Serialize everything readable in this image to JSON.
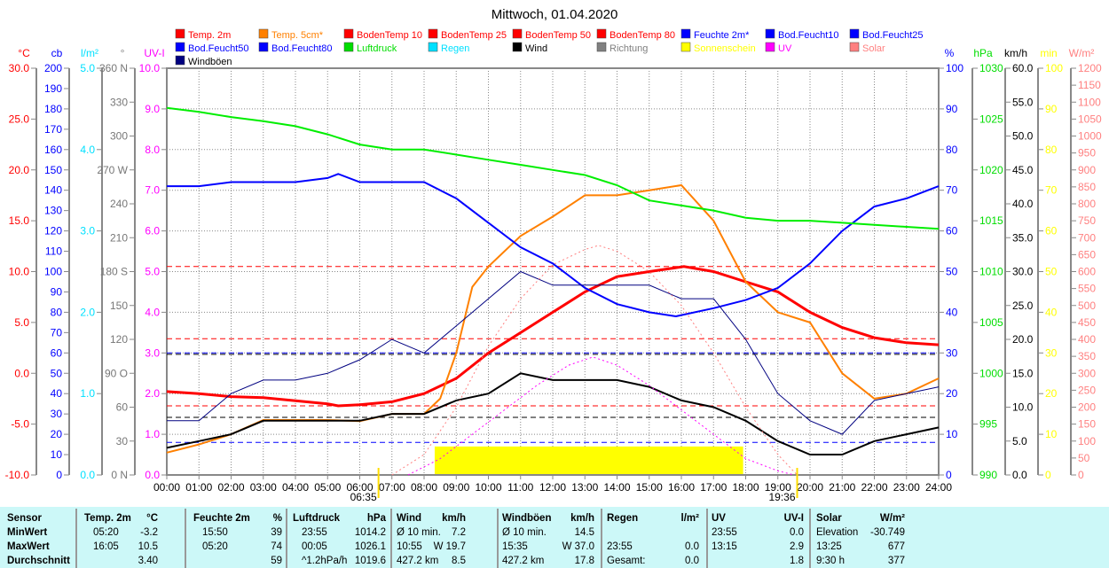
{
  "chart_data": {
    "type": "line",
    "title": "Mittwoch, 01.04.2020",
    "x_unit": "hours",
    "x_ticks": [
      "00:00",
      "01:00",
      "02:00",
      "03:00",
      "04:00",
      "05:00",
      "06:00",
      "07:00",
      "08:00",
      "09:00",
      "10:00",
      "11:00",
      "12:00",
      "13:00",
      "14:00",
      "15:00",
      "16:00",
      "17:00",
      "18:00",
      "19:00",
      "20:00",
      "21:00",
      "22:00",
      "23:00",
      "24:00"
    ],
    "sunrise": "06:35",
    "sunset": "19:36",
    "axes": {
      "temp": {
        "unit": "°C",
        "color": "#ff0000",
        "range": [
          -10,
          30
        ],
        "ticks": [
          "30.0",
          "25.0",
          "20.0",
          "15.0",
          "10.0",
          "5.0",
          "0.0",
          "-5.0",
          "-10.0"
        ]
      },
      "cb": {
        "unit": "cb",
        "color": "#0000ff",
        "range": [
          0,
          200
        ],
        "ticks": [
          "200",
          "190",
          "180",
          "170",
          "160",
          "150",
          "140",
          "130",
          "120",
          "110",
          "100",
          "90",
          "80",
          "70",
          "60",
          "50",
          "40",
          "30",
          "20",
          "10",
          "0"
        ]
      },
      "rain": {
        "unit": "l/m²",
        "color": "#00e0ff",
        "range": [
          0,
          5
        ],
        "ticks": [
          "5.0",
          "4.0",
          "3.0",
          "2.0",
          "1.0",
          "0.0"
        ]
      },
      "dir": {
        "unit": "°",
        "color": "#808080",
        "range": [
          0,
          360
        ],
        "ticks": [
          "360 N",
          "330",
          "300",
          "270 W",
          "240",
          "210",
          "180 S",
          "150",
          "120",
          "90 O",
          "60",
          "30",
          "0 N"
        ]
      },
      "uv": {
        "unit": "UV-I",
        "color": "#ff00ff",
        "range": [
          0,
          10
        ],
        "ticks": [
          "10.0",
          "9.0",
          "8.0",
          "7.0",
          "6.0",
          "5.0",
          "4.0",
          "3.0",
          "2.0",
          "1.0",
          "0.0"
        ]
      },
      "hum": {
        "unit": "%",
        "color": "#0000ff",
        "range": [
          0,
          100
        ],
        "ticks": [
          "100",
          "90",
          "80",
          "70",
          "60",
          "50",
          "40",
          "30",
          "20",
          "10",
          "0"
        ]
      },
      "press": {
        "unit": "hPa",
        "color": "#00dd00",
        "range": [
          990,
          1030
        ],
        "ticks": [
          "1030",
          "1025",
          "1020",
          "1015",
          "1010",
          "1005",
          "1000",
          "995",
          "990"
        ]
      },
      "wind": {
        "unit": "km/h",
        "color": "#000000",
        "range": [
          0,
          60
        ],
        "ticks": [
          "60.0",
          "55.0",
          "50.0",
          "45.0",
          "40.0",
          "35.0",
          "30.0",
          "25.0",
          "20.0",
          "15.0",
          "10.0",
          "5.0",
          "0.0"
        ]
      },
      "sun": {
        "unit": "min",
        "color": "#ffff00",
        "range": [
          0,
          100
        ],
        "ticks": [
          "100",
          "90",
          "80",
          "70",
          "60",
          "50",
          "40",
          "30",
          "20",
          "10",
          "0"
        ]
      },
      "solar": {
        "unit": "W/m²",
        "color": "#ff8080",
        "range": [
          0,
          1200
        ],
        "ticks": [
          "1200",
          "1150",
          "1100",
          "1050",
          "1000",
          "950",
          "900",
          "850",
          "800",
          "750",
          "700",
          "650",
          "600",
          "550",
          "500",
          "450",
          "400",
          "350",
          "300",
          "250",
          "200",
          "150",
          "100",
          "50",
          "0"
        ]
      }
    },
    "legend": [
      {
        "label": "Temp. 2m",
        "color": "#ff0000"
      },
      {
        "label": "Temp. 5cm*",
        "color": "#ff8000"
      },
      {
        "label": "BodenTemp 10",
        "color": "#ff0000"
      },
      {
        "label": "BodenTemp 25",
        "color": "#ff0000"
      },
      {
        "label": "BodenTemp 50",
        "color": "#ff0000"
      },
      {
        "label": "BodenTemp 80",
        "color": "#ff0000"
      },
      {
        "label": "Feuchte 2m*",
        "color": "#0000ff"
      },
      {
        "label": "Bod.Feucht10",
        "color": "#0000ff"
      },
      {
        "label": "Bod.Feucht25",
        "color": "#0000ff"
      },
      {
        "label": "Bod.Feucht50",
        "color": "#0000ff"
      },
      {
        "label": "Bod.Feucht80",
        "color": "#0000ff"
      },
      {
        "label": "Luftdruck",
        "color": "#00dd00"
      },
      {
        "label": "Regen",
        "color": "#00e0ff"
      },
      {
        "label": "Wind",
        "color": "#000000"
      },
      {
        "label": "Richtung",
        "color": "#808080"
      },
      {
        "label": "Sonnenschein",
        "color": "#ffff00"
      },
      {
        "label": "UV",
        "color": "#ff00ff"
      },
      {
        "label": "Solar",
        "color": "#ff8080"
      },
      {
        "label": "Windböen",
        "color": "#000080"
      }
    ],
    "series": [
      {
        "name": "Temp. 2m",
        "axis": "temp",
        "color": "#ff0000",
        "width": 3,
        "x": [
          0,
          1,
          2,
          3,
          4,
          5,
          5.33,
          6,
          7,
          8,
          9,
          10,
          11,
          12,
          13,
          14,
          15,
          16.08,
          17,
          18,
          19,
          20,
          21,
          22,
          23,
          24
        ],
        "values": [
          -1.8,
          -2.0,
          -2.3,
          -2.4,
          -2.7,
          -3.0,
          -3.2,
          -3.1,
          -2.8,
          -2.0,
          -0.5,
          2.0,
          4.0,
          6.0,
          8.0,
          9.5,
          10.0,
          10.5,
          10.0,
          9.0,
          8.0,
          6.0,
          4.5,
          3.5,
          3.0,
          2.8
        ]
      },
      {
        "name": "Temp. 5cm*",
        "axis": "temp",
        "color": "#ff8000",
        "width": 2,
        "x": [
          0,
          1,
          2,
          3,
          4,
          5,
          6,
          7,
          8,
          8.5,
          9,
          9.5,
          10,
          11,
          12,
          13,
          14,
          15,
          16,
          17,
          18,
          19,
          20,
          21,
          22,
          23,
          24
        ],
        "values": [
          -7.8,
          -7.0,
          -6.0,
          -4.6,
          -4.6,
          -4.6,
          -4.7,
          -4.0,
          -4.0,
          -2.5,
          2.0,
          8.5,
          10.5,
          13.5,
          15.4,
          17.5,
          17.5,
          18.0,
          18.5,
          15.0,
          9.0,
          6.0,
          5.0,
          0.0,
          -2.5,
          -2.0,
          -0.5
        ]
      },
      {
        "name": "Feuchte 2m*",
        "axis": "hum",
        "color": "#0000ff",
        "width": 2,
        "x": [
          0,
          1,
          2,
          3,
          4,
          5,
          5.33,
          6,
          7,
          8,
          9,
          10,
          11,
          12,
          13,
          14,
          15,
          15.83,
          17,
          18,
          19,
          20,
          21,
          22,
          23,
          24
        ],
        "values": [
          71,
          71,
          72,
          72,
          72,
          73,
          74,
          72,
          72,
          72,
          68,
          62,
          56,
          52,
          46,
          42,
          40,
          39,
          41,
          43,
          46,
          52,
          60,
          66,
          68,
          71
        ]
      },
      {
        "name": "Luftdruck",
        "axis": "press",
        "color": "#00ee00",
        "width": 2,
        "x": [
          0,
          1,
          2,
          3,
          4,
          5,
          6,
          7,
          8,
          9,
          10,
          11,
          12,
          13,
          14,
          15,
          16,
          17,
          18,
          19,
          20,
          21,
          22,
          23,
          24
        ],
        "values": [
          1026.1,
          1025.7,
          1025.2,
          1024.8,
          1024.3,
          1023.5,
          1022.5,
          1022.0,
          1022.0,
          1021.5,
          1021.0,
          1020.5,
          1020.0,
          1019.5,
          1018.5,
          1017.0,
          1016.5,
          1016.0,
          1015.3,
          1015.0,
          1015.0,
          1014.8,
          1014.6,
          1014.4,
          1014.2
        ]
      },
      {
        "name": "Windböen",
        "axis": "wind",
        "color": "#000080",
        "width": 1,
        "x": [
          0,
          1,
          2,
          3,
          4,
          5,
          6,
          7,
          8,
          9,
          10,
          11,
          12,
          13,
          14,
          15,
          16,
          17,
          18,
          19,
          20,
          21,
          22,
          23,
          24
        ],
        "values": [
          8,
          8,
          12,
          14,
          14,
          15,
          17,
          20,
          18,
          22,
          26,
          30,
          28,
          28,
          28,
          28,
          26,
          26,
          20,
          12,
          8,
          6,
          11,
          12,
          13
        ]
      },
      {
        "name": "Wind",
        "axis": "wind",
        "color": "#000000",
        "width": 2,
        "x": [
          0,
          1,
          2,
          3,
          4,
          5,
          6,
          7,
          8,
          9,
          10,
          11,
          12,
          13,
          14,
          15,
          16,
          17,
          18,
          19,
          20,
          21,
          22,
          23,
          24
        ],
        "values": [
          4,
          5,
          6,
          8,
          8,
          8,
          8,
          9,
          9,
          11,
          12,
          15,
          14,
          14,
          14,
          13,
          11,
          10,
          8,
          5,
          3,
          3,
          5,
          6,
          7
        ]
      },
      {
        "name": "Solar",
        "axis": "solar",
        "color": "#ff8080",
        "width": 1,
        "dash": "2,3",
        "x": [
          7,
          8,
          9,
          10,
          11,
          12,
          13,
          13.42,
          14,
          15,
          16,
          17,
          18,
          19,
          19.6
        ],
        "values": [
          0,
          60,
          200,
          380,
          520,
          620,
          665,
          677,
          660,
          600,
          500,
          360,
          200,
          60,
          0
        ]
      },
      {
        "name": "UV",
        "axis": "uv",
        "color": "#ff00ff",
        "width": 1,
        "dash": "2,3",
        "x": [
          7.5,
          8.5,
          9.5,
          10.5,
          11.5,
          12.5,
          13.25,
          14,
          15,
          16,
          17,
          18,
          19,
          19.5
        ],
        "values": [
          0,
          0.4,
          1.0,
          1.6,
          2.2,
          2.7,
          2.9,
          2.7,
          2.2,
          1.6,
          1.0,
          0.4,
          0.1,
          0
        ]
      }
    ],
    "sunshine": {
      "axis": "sun",
      "color": "#ffff00",
      "start": 8.33,
      "end": 17.92,
      "value": 7
    },
    "reference_lines": [
      {
        "axis": "temp",
        "value": 10.5,
        "color": "#ff0000"
      },
      {
        "axis": "temp",
        "value": -3.2,
        "color": "#ff0000"
      },
      {
        "axis": "temp",
        "value": 3.4,
        "color": "#ff0000"
      },
      {
        "axis": "hum",
        "value": 30,
        "color": "#0000ff"
      },
      {
        "axis": "hum",
        "value": 8,
        "color": "#0000ff"
      },
      {
        "axis": "wind",
        "value": 8.5,
        "color": "#000000"
      },
      {
        "axis": "wind",
        "value": 17.8,
        "color": "#000000"
      }
    ]
  },
  "stats": {
    "columns": [
      {
        "header": "Sensor",
        "unit": "",
        "rows": [
          [
            "MinWert",
            ""
          ],
          [
            "MaxWert",
            ""
          ],
          [
            "Durchschnitt",
            ""
          ]
        ]
      },
      {
        "header": "Temp. 2m",
        "unit": "°C",
        "rows": [
          [
            "05:20",
            "-3.2"
          ],
          [
            "16:05",
            "10.5"
          ],
          [
            "",
            "3.40"
          ]
        ]
      },
      {
        "header": "Feuchte 2m",
        "unit": "%",
        "rows": [
          [
            "15:50",
            "39"
          ],
          [
            "05:20",
            "74"
          ],
          [
            "",
            "59"
          ]
        ]
      },
      {
        "header": "Luftdruck",
        "unit": "hPa",
        "rows": [
          [
            "23:55",
            "1014.2"
          ],
          [
            "00:05",
            "1026.1"
          ],
          [
            "^1.2hPa/h",
            "1019.6"
          ]
        ]
      },
      {
        "header": "Wind",
        "unit": "km/h",
        "rows": [
          [
            "Ø 10 min.",
            "7.2"
          ],
          [
            "10:55",
            "W 19.7"
          ],
          [
            "427.2 km",
            "8.5"
          ]
        ]
      },
      {
        "header": "Windböen",
        "unit": "km/h",
        "rows": [
          [
            "Ø 10 min.",
            "14.5"
          ],
          [
            "15:35",
            "W 37.0"
          ],
          [
            "427.2 km",
            "17.8"
          ]
        ]
      },
      {
        "header": "Regen",
        "unit": "l/m²",
        "rows": [
          [
            "",
            ""
          ],
          [
            "23:55",
            "0.0"
          ],
          [
            "Gesamt:",
            "0.0"
          ]
        ]
      },
      {
        "header": "UV",
        "unit": "UV-I",
        "rows": [
          [
            "23:55",
            "0.0"
          ],
          [
            "13:15",
            "2.9"
          ],
          [
            "",
            "1.8"
          ]
        ]
      },
      {
        "header": "Solar",
        "unit": "W/m²",
        "rows": [
          [
            "Elevation",
            "-30.749"
          ],
          [
            "13:25",
            "677"
          ],
          [
            "9:30 h",
            "377"
          ]
        ]
      }
    ]
  }
}
